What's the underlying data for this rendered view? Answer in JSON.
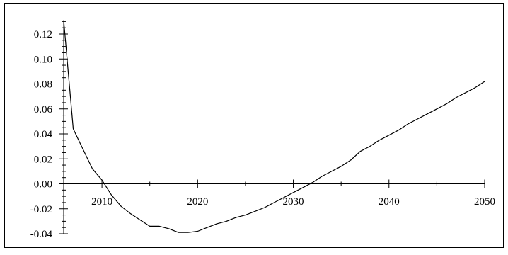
{
  "chart_data": {
    "type": "line",
    "title": "",
    "xlabel": "",
    "ylabel": "",
    "xlim": [
      2006,
      2050
    ],
    "ylim": [
      -0.04,
      0.13
    ],
    "grid": false,
    "legend": "none",
    "x_ticks": [
      2010,
      2020,
      2030,
      2040,
      2050
    ],
    "x_tick_labels": [
      "2010",
      "2020",
      "2030",
      "2040",
      "2050"
    ],
    "y_ticks": [
      -0.04,
      -0.02,
      0.0,
      0.02,
      0.04,
      0.06,
      0.08,
      0.1,
      0.12
    ],
    "y_tick_labels": [
      "-0.04",
      "-0.02",
      "0.00",
      "0.02",
      "0.04",
      "0.06",
      "0.08",
      "0.10",
      "0.12"
    ],
    "line_color": "#000000",
    "series": [
      {
        "x": [
          2006,
          2007,
          2008,
          2009,
          2010,
          2011,
          2012,
          2013,
          2014,
          2015,
          2016,
          2017,
          2018,
          2019,
          2020,
          2021,
          2022,
          2023,
          2024,
          2025,
          2026,
          2027,
          2028,
          2029,
          2030,
          2031,
          2032,
          2033,
          2034,
          2035,
          2036,
          2037,
          2038,
          2039,
          2040,
          2041,
          2042,
          2043,
          2044,
          2045,
          2046,
          2047,
          2048,
          2049,
          2050
        ],
        "values": [
          0.131,
          0.044,
          0.028,
          0.012,
          0.003,
          -0.009,
          -0.018,
          -0.024,
          -0.029,
          -0.034,
          -0.034,
          -0.036,
          -0.039,
          -0.039,
          -0.038,
          -0.035,
          -0.032,
          -0.03,
          -0.027,
          -0.025,
          -0.022,
          -0.019,
          -0.015,
          -0.011,
          -0.007,
          -0.003,
          0.001,
          0.006,
          0.01,
          0.014,
          0.019,
          0.026,
          0.03,
          0.035,
          0.039,
          0.043,
          0.048,
          0.052,
          0.056,
          0.06,
          0.064,
          0.069,
          0.073,
          0.077,
          0.082
        ]
      }
    ]
  }
}
